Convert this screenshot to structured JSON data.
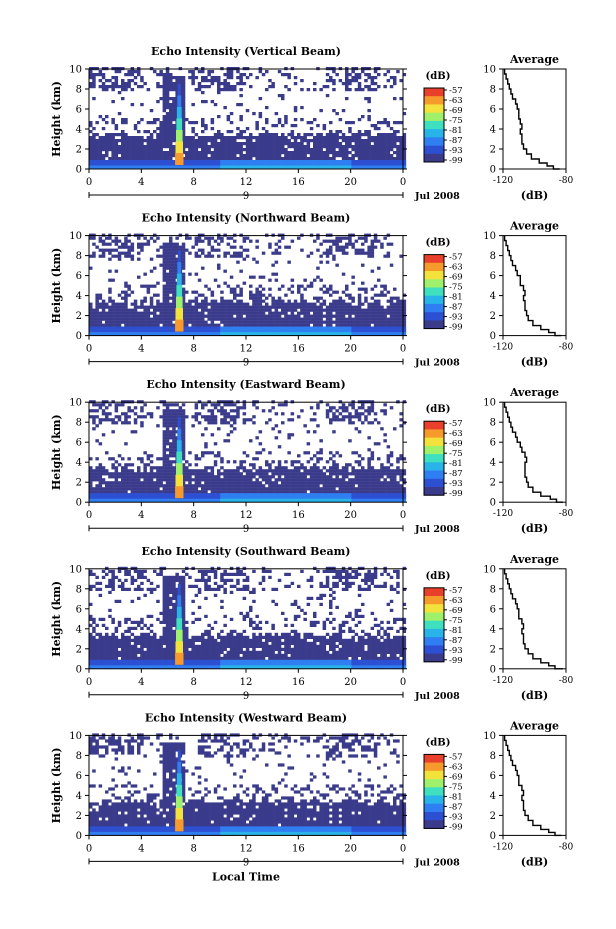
{
  "chart_data": [
    {
      "type": "heatmap",
      "title": "Echo Intensity (Vertical Beam)",
      "ylabel": "Height (km)",
      "ylim": [
        0,
        10
      ],
      "yticks": [
        "0",
        "2",
        "4",
        "6",
        "8",
        "10"
      ],
      "xlim": [
        0,
        24
      ],
      "xticks": [
        "0",
        "4",
        "8",
        "12",
        "16",
        "20",
        "0"
      ],
      "date_tick": "9",
      "date_label": "Jul 2008",
      "colorbar": {
        "label": "(dB)",
        "ticks": [
          "-57",
          "-63",
          "-69",
          "-75",
          "-81",
          "-87",
          "-93",
          "-99"
        ]
      },
      "average_profile": {
        "title": "Average",
        "xlabel": "(dB)",
        "xlim": [
          -120,
          -80
        ],
        "xticks": [
          "-120",
          "-80"
        ],
        "height": [
          0,
          0.3,
          0.6,
          1,
          1.5,
          2,
          2.5,
          3,
          3.5,
          4,
          4.5,
          5,
          5.5,
          6,
          6.5,
          7,
          7.5,
          8,
          8.5,
          9,
          9.5,
          10
        ],
        "db": [
          -84,
          -88,
          -92,
          -97,
          -102,
          -105,
          -107,
          -108,
          -108,
          -109,
          -108,
          -109,
          -110,
          -110,
          -111,
          -112,
          -114,
          -115,
          -116,
          -117,
          -118,
          -119
        ]
      }
    },
    {
      "type": "heatmap",
      "title": "Echo Intensity (Northward Beam)",
      "ylabel": "Height (km)",
      "ylim": [
        0,
        10
      ],
      "yticks": [
        "0",
        "2",
        "4",
        "6",
        "8",
        "10"
      ],
      "xlim": [
        0,
        24
      ],
      "xticks": [
        "0",
        "4",
        "8",
        "12",
        "16",
        "20",
        "0"
      ],
      "date_tick": "9",
      "date_label": "Jul 2008",
      "colorbar": {
        "label": "(dB)",
        "ticks": [
          "-57",
          "-63",
          "-69",
          "-75",
          "-81",
          "-87",
          "-93",
          "-99"
        ]
      },
      "average_profile": {
        "title": "Average",
        "xlabel": "(dB)",
        "xlim": [
          -120,
          -80
        ],
        "xticks": [
          "-120",
          "-80"
        ],
        "height": [
          0,
          0.3,
          0.6,
          1,
          1.5,
          2,
          2.5,
          3,
          3.5,
          4,
          4.5,
          5,
          5.5,
          6,
          6.5,
          7,
          7.5,
          8,
          8.5,
          9,
          9.5,
          10
        ],
        "db": [
          -83,
          -87,
          -91,
          -96,
          -101,
          -104,
          -105,
          -106,
          -106,
          -107,
          -106,
          -107,
          -109,
          -109,
          -111,
          -112,
          -114,
          -115,
          -116,
          -117,
          -118,
          -119
        ]
      }
    },
    {
      "type": "heatmap",
      "title": "Echo Intensity (Eastward Beam)",
      "ylabel": "Height (km)",
      "ylim": [
        0,
        10
      ],
      "yticks": [
        "0",
        "2",
        "4",
        "6",
        "8",
        "10"
      ],
      "xlim": [
        0,
        24
      ],
      "xticks": [
        "0",
        "4",
        "8",
        "12",
        "16",
        "20",
        "0"
      ],
      "date_tick": "9",
      "date_label": "Jul 2008",
      "colorbar": {
        "label": "(dB)",
        "ticks": [
          "-57",
          "-63",
          "-69",
          "-75",
          "-81",
          "-87",
          "-93",
          "-99"
        ]
      },
      "average_profile": {
        "title": "Average",
        "xlabel": "(dB)",
        "xlim": [
          -120,
          -80
        ],
        "xticks": [
          "-120",
          "-80"
        ],
        "height": [
          0,
          0.3,
          0.6,
          1,
          1.5,
          2,
          2.5,
          3,
          3.5,
          4,
          4.5,
          5,
          5.5,
          6,
          6.5,
          7,
          7.5,
          8,
          8.5,
          9,
          9.5,
          10
        ],
        "db": [
          -82,
          -86,
          -90,
          -96,
          -101,
          -104,
          -105,
          -106,
          -106,
          -106,
          -105,
          -106,
          -108,
          -109,
          -111,
          -112,
          -114,
          -115,
          -116,
          -117,
          -118,
          -119
        ]
      }
    },
    {
      "type": "heatmap",
      "title": "Echo Intensity (Southward Beam)",
      "ylabel": "Height (km)",
      "ylim": [
        0,
        10
      ],
      "yticks": [
        "0",
        "2",
        "4",
        "6",
        "8",
        "10"
      ],
      "xlim": [
        0,
        24
      ],
      "xticks": [
        "0",
        "4",
        "8",
        "12",
        "16",
        "20",
        "0"
      ],
      "date_tick": "9",
      "date_label": "Jul 2008",
      "colorbar": {
        "label": "(dB)",
        "ticks": [
          "-57",
          "-63",
          "-69",
          "-75",
          "-81",
          "-87",
          "-93",
          "-99"
        ]
      },
      "average_profile": {
        "title": "Average",
        "xlabel": "(dB)",
        "xlim": [
          -120,
          -80
        ],
        "xticks": [
          "-120",
          "-80"
        ],
        "height": [
          0,
          0.3,
          0.6,
          1,
          1.5,
          2,
          2.5,
          3,
          3.5,
          4,
          4.5,
          5,
          5.5,
          6,
          6.5,
          7,
          7.5,
          8,
          8.5,
          9,
          9.5,
          10
        ],
        "db": [
          -82,
          -87,
          -91,
          -96,
          -101,
          -104,
          -106,
          -107,
          -107,
          -108,
          -107,
          -108,
          -110,
          -110,
          -111,
          -112,
          -114,
          -115,
          -116,
          -117,
          -118,
          -119
        ]
      }
    },
    {
      "type": "heatmap",
      "title": "Echo Intensity (Westward Beam)",
      "ylabel": "Height (km)",
      "xlabel": "Local Time",
      "ylim": [
        0,
        10
      ],
      "yticks": [
        "0",
        "2",
        "4",
        "6",
        "8",
        "10"
      ],
      "xlim": [
        0,
        24
      ],
      "xticks": [
        "0",
        "4",
        "8",
        "12",
        "16",
        "20",
        "0"
      ],
      "date_tick": "9",
      "date_label": "Jul 2008",
      "colorbar": {
        "label": "(dB)",
        "ticks": [
          "-57",
          "-63",
          "-69",
          "-75",
          "-81",
          "-87",
          "-93",
          "-99"
        ]
      },
      "average_profile": {
        "title": "Average",
        "xlabel": "(dB)",
        "xlim": [
          -120,
          -80
        ],
        "xticks": [
          "-120",
          "-80"
        ],
        "height": [
          0,
          0.3,
          0.6,
          1,
          1.5,
          2,
          2.5,
          3,
          3.5,
          4,
          4.5,
          5,
          5.5,
          6,
          6.5,
          7,
          7.5,
          8,
          8.5,
          9,
          9.5,
          10
        ],
        "db": [
          -83,
          -87,
          -91,
          -96,
          -101,
          -104,
          -106,
          -107,
          -107,
          -108,
          -107,
          -108,
          -110,
          -110,
          -111,
          -112,
          -114,
          -115,
          -116,
          -117,
          -118,
          -119
        ]
      }
    }
  ],
  "colors": {
    "colormap": [
      "#3b3b8c",
      "#2d4fd1",
      "#2f7ff2",
      "#28b4e8",
      "#3fe0c0",
      "#9ff06a",
      "#f4e23c",
      "#f79a2c",
      "#e8402a"
    ],
    "low_echo": "#3b3b8c",
    "axis": "#000000"
  }
}
